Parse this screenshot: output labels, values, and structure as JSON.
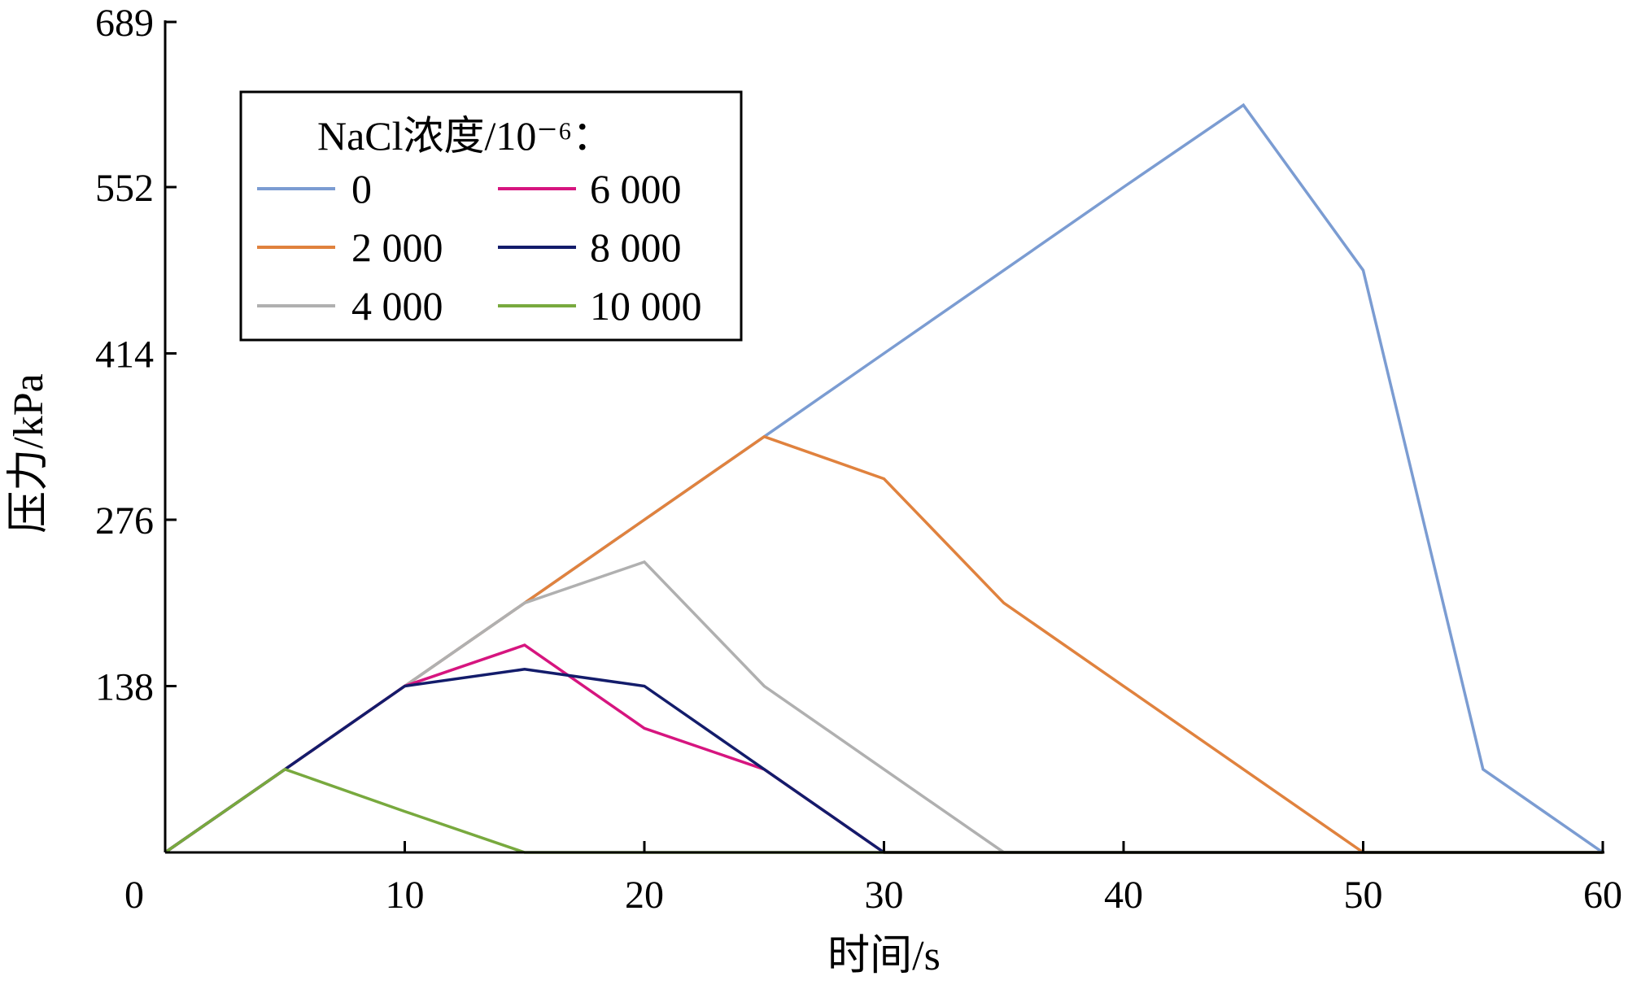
{
  "chart_data": {
    "type": "line",
    "xlabel": "时间/s",
    "ylabel": "压力/kPa",
    "xlim": [
      0,
      60
    ],
    "ylim": [
      0,
      689
    ],
    "x_ticks": [
      0,
      10,
      20,
      30,
      40,
      50,
      60
    ],
    "y_ticks": [
      138,
      276,
      414,
      552,
      689
    ],
    "grid": false,
    "legend": {
      "title": "NaCl浓度/10⁻⁶：",
      "placement": "top-left",
      "columns": 2
    },
    "series": [
      {
        "name": "0",
        "color": "#7b9cd2",
        "points": [
          [
            0,
            0
          ],
          [
            5,
            69
          ],
          [
            10,
            138
          ],
          [
            15,
            207
          ],
          [
            20,
            276
          ],
          [
            25,
            345
          ],
          [
            30,
            414
          ],
          [
            35,
            483
          ],
          [
            40,
            552
          ],
          [
            45,
            620
          ],
          [
            50,
            483
          ],
          [
            55,
            69
          ],
          [
            60,
            0
          ]
        ]
      },
      {
        "name": "2 000",
        "color": "#e0823e",
        "points": [
          [
            0,
            0
          ],
          [
            5,
            69
          ],
          [
            10,
            138
          ],
          [
            15,
            207
          ],
          [
            20,
            276
          ],
          [
            25,
            345
          ],
          [
            30,
            310
          ],
          [
            35,
            207
          ],
          [
            40,
            138
          ],
          [
            45,
            69
          ],
          [
            50,
            0
          ],
          [
            55,
            0
          ],
          [
            60,
            0
          ]
        ]
      },
      {
        "name": "4 000",
        "color": "#b0b0b0",
        "points": [
          [
            0,
            0
          ],
          [
            5,
            69
          ],
          [
            10,
            138
          ],
          [
            15,
            207
          ],
          [
            20,
            241
          ],
          [
            25,
            138
          ],
          [
            30,
            69
          ],
          [
            35,
            0
          ],
          [
            40,
            0
          ],
          [
            45,
            0
          ],
          [
            50,
            0
          ],
          [
            55,
            0
          ],
          [
            60,
            0
          ]
        ]
      },
      {
        "name": "6 000",
        "color": "#d6157f",
        "points": [
          [
            0,
            0
          ],
          [
            5,
            69
          ],
          [
            10,
            138
          ],
          [
            15,
            172
          ],
          [
            20,
            103
          ],
          [
            25,
            69
          ],
          [
            30,
            0
          ],
          [
            35,
            0
          ],
          [
            40,
            0
          ],
          [
            45,
            0
          ],
          [
            50,
            0
          ],
          [
            55,
            0
          ],
          [
            60,
            0
          ]
        ]
      },
      {
        "name": "8 000",
        "color": "#131c6b",
        "points": [
          [
            0,
            0
          ],
          [
            5,
            69
          ],
          [
            10,
            138
          ],
          [
            15,
            152
          ],
          [
            20,
            138
          ],
          [
            25,
            69
          ],
          [
            30,
            0
          ],
          [
            35,
            0
          ],
          [
            40,
            0
          ],
          [
            45,
            0
          ],
          [
            50,
            0
          ],
          [
            55,
            0
          ],
          [
            60,
            0
          ]
        ]
      },
      {
        "name": "10 000",
        "color": "#78a93e",
        "points": [
          [
            0,
            0
          ],
          [
            5,
            69
          ],
          [
            10,
            34
          ],
          [
            15,
            0
          ],
          [
            20,
            0
          ],
          [
            25,
            0
          ],
          [
            30,
            0
          ],
          [
            35,
            0
          ],
          [
            40,
            0
          ],
          [
            45,
            0
          ],
          [
            50,
            0
          ],
          [
            55,
            0
          ],
          [
            60,
            0
          ]
        ]
      }
    ]
  }
}
